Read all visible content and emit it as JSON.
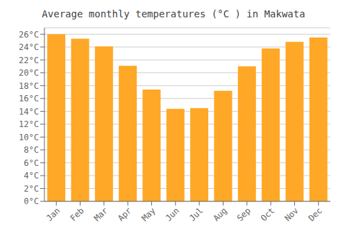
{
  "chart_data": {
    "type": "bar",
    "title": "Average monthly temperatures (°C ) in Makwata",
    "categories": [
      "Jan",
      "Feb",
      "Mar",
      "Apr",
      "May",
      "Jun",
      "Jul",
      "Aug",
      "Sep",
      "Oct",
      "Nov",
      "Dec"
    ],
    "values": [
      26.0,
      25.3,
      24.1,
      21.1,
      17.4,
      14.4,
      14.5,
      17.2,
      21.0,
      23.8,
      24.8,
      25.5
    ],
    "color": "#FFA726",
    "ylim": [
      0,
      27
    ],
    "yticks": [
      {
        "value": 0,
        "label": "0°C"
      },
      {
        "value": 2,
        "label": "2°C"
      },
      {
        "value": 4,
        "label": "4°C"
      },
      {
        "value": 6,
        "label": "6°C"
      },
      {
        "value": 8,
        "label": "8°C"
      },
      {
        "value": 10,
        "label": "10°C"
      },
      {
        "value": 12,
        "label": "12°C"
      },
      {
        "value": 14,
        "label": "14°C"
      },
      {
        "value": 16,
        "label": "16°C"
      },
      {
        "value": 18,
        "label": "18°C"
      },
      {
        "value": 20,
        "label": "20°C"
      },
      {
        "value": 22,
        "label": "22°C"
      },
      {
        "value": 24,
        "label": "24°C"
      },
      {
        "value": 26,
        "label": "26°C"
      }
    ],
    "grid": true
  }
}
